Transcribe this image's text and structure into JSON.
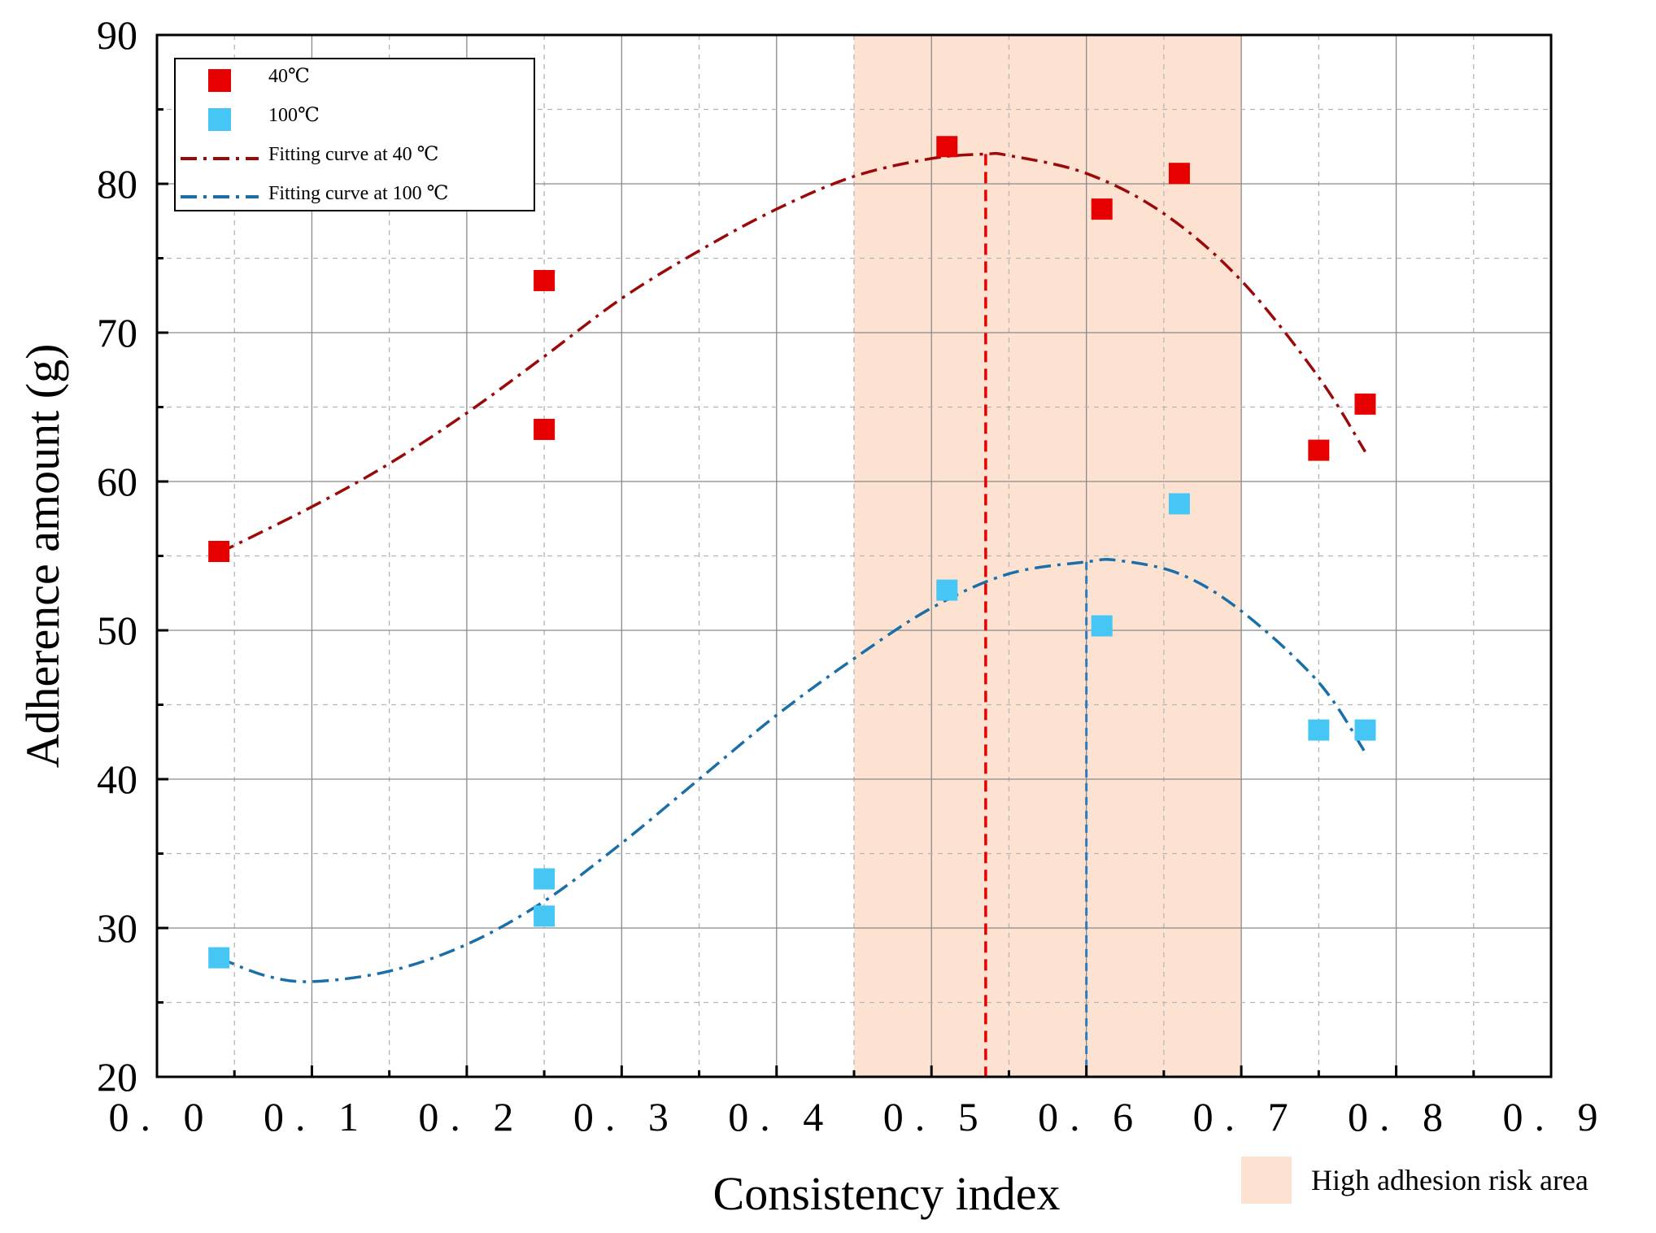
{
  "chart_data": {
    "type": "scatter",
    "title": "",
    "xlabel": "Consistency index",
    "ylabel": "Adherence amount (g)",
    "xlim": [
      0.0,
      0.9
    ],
    "ylim": [
      20,
      90
    ],
    "x_ticks": [
      "0. 0",
      "0. 1",
      "0. 2",
      "0. 3",
      "0. 4",
      "0. 5",
      "0. 6",
      "0. 7",
      "0. 8",
      "0. 9"
    ],
    "x_tick_values": [
      0.0,
      0.1,
      0.2,
      0.3,
      0.4,
      0.5,
      0.6,
      0.7,
      0.8,
      0.9
    ],
    "y_ticks": [
      "20",
      "30",
      "40",
      "50",
      "60",
      "70",
      "80",
      "90"
    ],
    "y_tick_values": [
      20,
      30,
      40,
      50,
      60,
      70,
      80,
      90
    ],
    "grid": true,
    "legend_position": "top-left",
    "colors": {
      "s40": "#e60000",
      "s100": "#45c6f5",
      "fit40": "#9b0a0a",
      "fit100": "#1a6fa8",
      "region": "#fde2d2",
      "vline40": "#e60000",
      "vline100": "#2c7bbf"
    },
    "series": [
      {
        "name": "40℃",
        "kind": "scatter",
        "points": [
          [
            0.04,
            55.3
          ],
          [
            0.25,
            73.5
          ],
          [
            0.25,
            63.5
          ],
          [
            0.51,
            82.5
          ],
          [
            0.61,
            78.3
          ],
          [
            0.66,
            80.7
          ],
          [
            0.75,
            62.1
          ],
          [
            0.78,
            65.2
          ]
        ]
      },
      {
        "name": "100℃",
        "kind": "scatter",
        "points": [
          [
            0.04,
            28.0
          ],
          [
            0.25,
            33.3
          ],
          [
            0.25,
            30.8
          ],
          [
            0.51,
            52.7
          ],
          [
            0.61,
            50.3
          ],
          [
            0.66,
            58.5
          ],
          [
            0.75,
            43.3
          ],
          [
            0.78,
            43.3
          ]
        ]
      },
      {
        "name": "Fitting curve at 40 ℃",
        "kind": "line",
        "points": [
          [
            0.04,
            55.2
          ],
          [
            0.1,
            58.3
          ],
          [
            0.15,
            61.2
          ],
          [
            0.2,
            64.6
          ],
          [
            0.25,
            68.4
          ],
          [
            0.3,
            72.3
          ],
          [
            0.35,
            75.5
          ],
          [
            0.4,
            78.3
          ],
          [
            0.45,
            80.5
          ],
          [
            0.5,
            81.7
          ],
          [
            0.535,
            82.0
          ],
          [
            0.55,
            81.9
          ],
          [
            0.6,
            80.7
          ],
          [
            0.65,
            78.0
          ],
          [
            0.7,
            73.5
          ],
          [
            0.75,
            67.0
          ],
          [
            0.78,
            62.0
          ]
        ]
      },
      {
        "name": "Fitting curve at 100 ℃",
        "kind": "line",
        "points": [
          [
            0.04,
            28.0
          ],
          [
            0.07,
            26.8
          ],
          [
            0.1,
            26.4
          ],
          [
            0.15,
            27.1
          ],
          [
            0.2,
            28.9
          ],
          [
            0.25,
            31.8
          ],
          [
            0.3,
            35.7
          ],
          [
            0.35,
            40.0
          ],
          [
            0.4,
            44.3
          ],
          [
            0.45,
            48.1
          ],
          [
            0.5,
            51.5
          ],
          [
            0.55,
            53.8
          ],
          [
            0.6,
            54.6
          ],
          [
            0.62,
            54.7
          ],
          [
            0.66,
            53.8
          ],
          [
            0.7,
            51.3
          ],
          [
            0.75,
            46.5
          ],
          [
            0.78,
            41.8
          ]
        ]
      }
    ],
    "annotations": {
      "region": {
        "label": "High adhesion risk area",
        "x_range": [
          0.45,
          0.7
        ]
      },
      "peak_lines": [
        {
          "series": "Fitting curve at 40 ℃",
          "x": 0.535,
          "y": 82.0
        },
        {
          "series": "Fitting curve at 100 ℃",
          "x": 0.6,
          "y": 54.6
        }
      ]
    }
  }
}
